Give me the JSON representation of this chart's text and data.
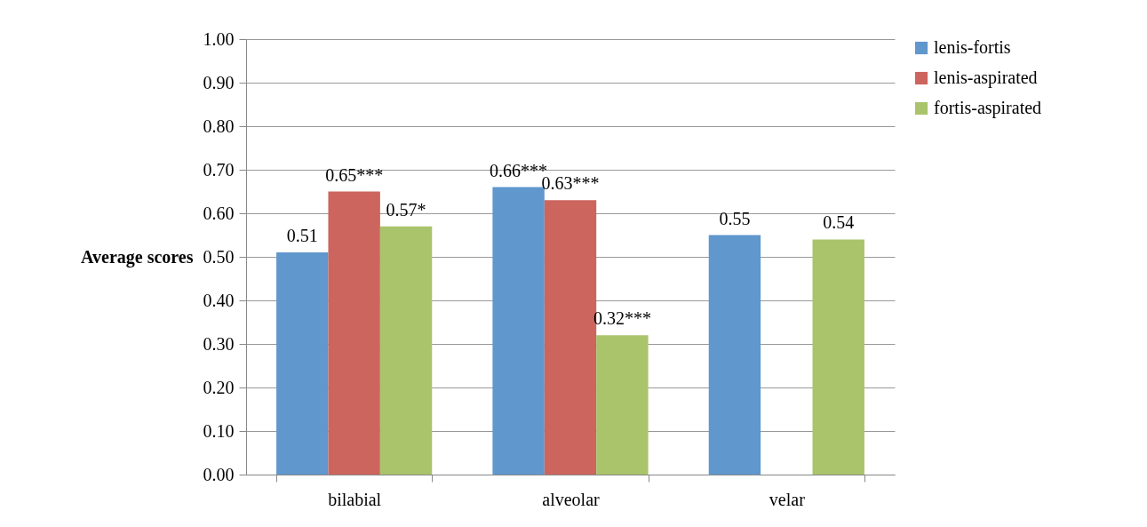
{
  "chart_data": {
    "type": "bar",
    "ylabel": "Average scores",
    "categories": [
      "bilabial",
      "alveolar",
      "velar"
    ],
    "series": [
      {
        "name": "lenis-fortis",
        "color": "#6097cd",
        "values": [
          0.51,
          0.66,
          0.55
        ],
        "value_labels": [
          "0.51",
          "0.66***",
          "0.55"
        ]
      },
      {
        "name": "lenis-aspirated",
        "color": "#cc655d",
        "values": [
          0.65,
          0.63,
          null
        ],
        "value_labels": [
          "0.65***",
          "0.63***",
          null
        ]
      },
      {
        "name": "fortis-aspirated",
        "color": "#a9c46b",
        "values": [
          0.57,
          0.32,
          0.54
        ],
        "value_labels": [
          "0.57*",
          "0.32***",
          "0.54"
        ]
      }
    ],
    "ylim": [
      0,
      1
    ],
    "yticks": [
      {
        "value": 0,
        "label": "0.00"
      },
      {
        "value": 0.1,
        "label": "0.10"
      },
      {
        "value": 0.2,
        "label": "0.20"
      },
      {
        "value": 0.3,
        "label": "0.30"
      },
      {
        "value": 0.4,
        "label": "0.40"
      },
      {
        "value": 0.5,
        "label": "0.50"
      },
      {
        "value": 0.6,
        "label": "0.60"
      },
      {
        "value": 0.7,
        "label": "0.70"
      },
      {
        "value": 0.8,
        "label": "0.80"
      },
      {
        "value": 0.9,
        "label": "0.90"
      },
      {
        "value": 1,
        "label": "1.00"
      }
    ],
    "grid": "y",
    "legend": "right"
  }
}
